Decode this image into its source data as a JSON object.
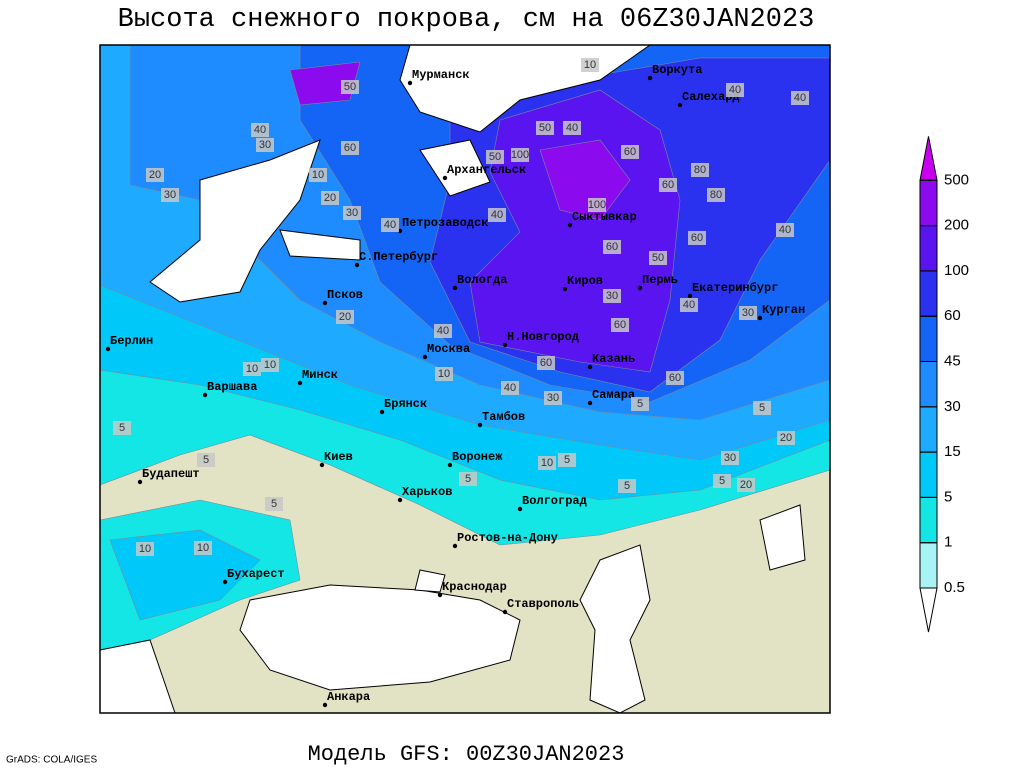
{
  "title": "Высота снежного покрова, см на 06Z30JAN2023",
  "footer": "Модель GFS: 00Z30JAN2023",
  "credit": "GrADS: COLA/IGES",
  "legend": {
    "levels": [
      0.5,
      1,
      5,
      15,
      30,
      45,
      60,
      100,
      200,
      500
    ],
    "colors": [
      "#ffffff",
      "#a8f4f4",
      "#14e6e6",
      "#00c8f8",
      "#1eaaff",
      "#1e8cff",
      "#1464f5",
      "#2a32f0",
      "#5a14f0",
      "#8c0aee",
      "#c800f0"
    ]
  },
  "land_color": "#e2e2c4",
  "sea_color": "#ffffff",
  "cities": [
    "Мурманск",
    "Воркута",
    "Салехард",
    "Архангельск",
    "Петрозаводск",
    "Сыктывкар",
    "С.Петербург",
    "Вологда",
    "Киров",
    "Пермь",
    "Екатеринбург",
    "Курган",
    "Псков",
    "Берлин",
    "Москва",
    "Н.Новгород",
    "Казань",
    "Минск",
    "Варшава",
    "Брянск",
    "Тамбов",
    "Самара",
    "Киев",
    "Воронеж",
    "Будапешт",
    "Харьков",
    "Волгоград",
    "Ростов-на-Дону",
    "Бухарест",
    "Краснодар",
    "Ставрополь",
    "Анкара"
  ],
  "contour_labels": [
    50,
    10,
    40,
    40,
    40,
    30,
    60,
    50,
    40,
    80,
    20,
    30,
    10,
    20,
    30,
    50,
    100,
    60,
    60,
    40,
    100,
    60,
    50,
    40,
    40,
    60,
    80,
    30,
    40,
    30,
    20,
    10,
    10,
    10,
    60,
    40,
    5,
    30,
    20,
    5,
    5,
    10,
    5,
    5,
    20,
    30,
    5,
    5,
    10,
    10,
    5,
    5,
    60,
    40,
    60
  ]
}
